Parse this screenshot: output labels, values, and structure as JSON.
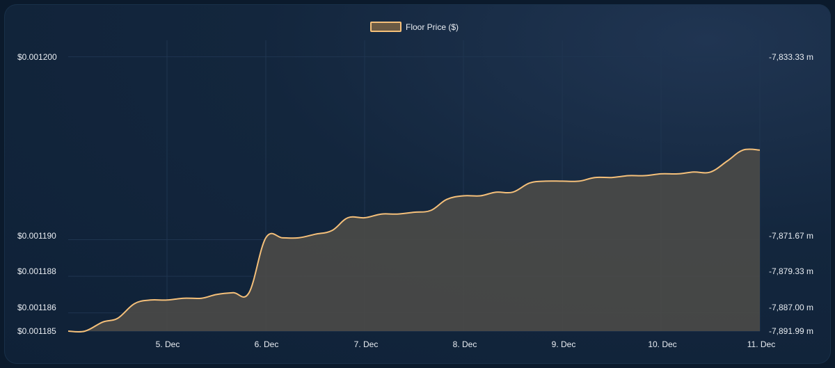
{
  "chart_data": {
    "type": "area",
    "legend": {
      "label": "Floor Price ($)",
      "placement": "top-center"
    },
    "colors": {
      "line": "#f5c07a",
      "fill": "#4a4a48",
      "grid": "#1f3550",
      "text": "#e9edf2"
    },
    "x_axis": {
      "ticks": [
        "5. Dec",
        "6. Dec",
        "7. Dec",
        "8. Dec",
        "9. Dec",
        "10. Dec",
        "11. Dec"
      ],
      "range": [
        "4. Dec 00:00",
        "11. Dec 00:00"
      ]
    },
    "y_left": {
      "ticks": [
        "$0.001200",
        "$0.001190",
        "$0.001188",
        "$0.001186",
        "$0.001185"
      ],
      "tick_values": [
        0.0012,
        0.00119,
        0.001188,
        0.001186,
        0.001185
      ],
      "range": [
        0.001185,
        0.0012009
      ]
    },
    "y_right": {
      "ticks": [
        "-7,833.33 m",
        "-7,871.67 m",
        "-7,879.33 m",
        "-7,887.00 m",
        "-7,891.99 m"
      ]
    },
    "series": [
      {
        "name": "Floor Price ($)",
        "x_days": [
          0,
          0.17,
          0.35,
          0.5,
          0.67,
          0.83,
          1.0,
          1.17,
          1.35,
          1.5,
          1.67,
          1.83,
          2.0,
          2.17,
          2.33,
          2.5,
          2.67,
          2.83,
          3.0,
          3.17,
          3.33,
          3.5,
          3.67,
          3.83,
          4.0,
          4.17,
          4.33,
          4.5,
          4.67,
          4.83,
          5.0,
          5.17,
          5.33,
          5.5,
          5.67,
          5.83,
          6.0,
          6.17,
          6.33,
          6.5,
          6.67,
          6.83,
          7.0
        ],
        "values": [
          0.001185,
          0.001185,
          0.0011855,
          0.0011857,
          0.0011865,
          0.0011867,
          0.0011867,
          0.0011868,
          0.0011868,
          0.001187,
          0.0011871,
          0.0011871,
          0.0011901,
          0.0011901,
          0.0011901,
          0.0011903,
          0.0011905,
          0.0011912,
          0.0011912,
          0.0011914,
          0.0011914,
          0.0011915,
          0.0011916,
          0.0011922,
          0.0011924,
          0.0011924,
          0.0011926,
          0.0011926,
          0.0011931,
          0.0011932,
          0.0011932,
          0.0011932,
          0.0011934,
          0.0011934,
          0.0011935,
          0.0011935,
          0.0011936,
          0.0011936,
          0.0011937,
          0.0011937,
          0.0011943,
          0.0011949,
          0.0011949
        ]
      }
    ]
  }
}
